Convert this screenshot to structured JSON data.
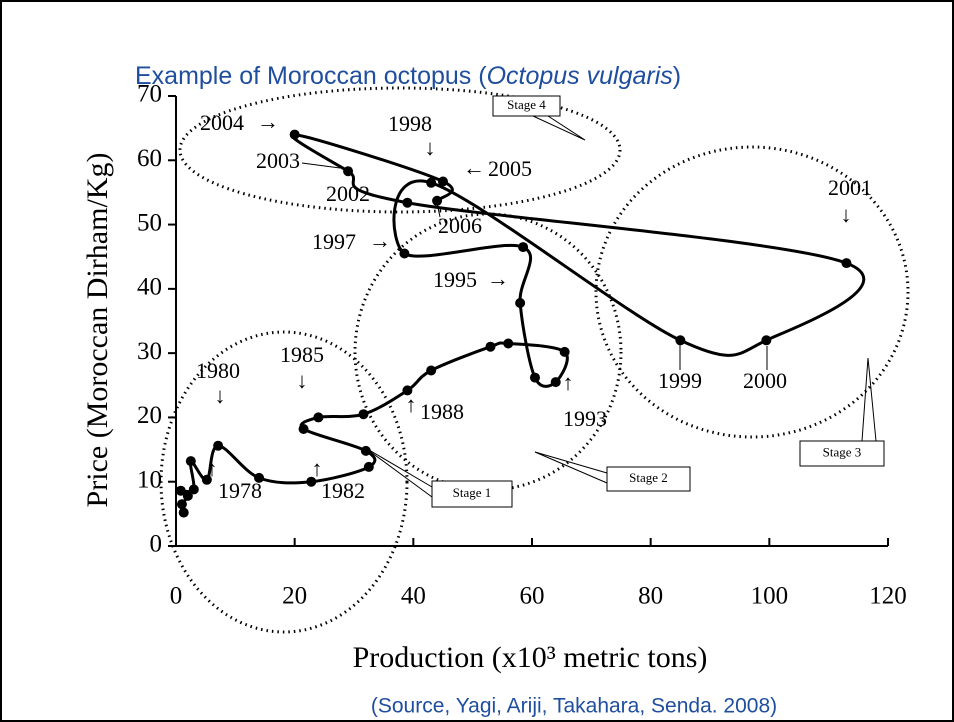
{
  "chart_data": {
    "type": "connected-scatter",
    "title": [
      "Example of Moroccan octopus (",
      "Octopus vulgaris",
      ")"
    ],
    "xlabel": "Production (x10³ metric tons)",
    "ylabel": "Price (Moroccan Dirham/Kg)",
    "source": "(Source, Yagi, Ariji, Takahara, Senda. 2008)",
    "xlim": [
      0,
      120
    ],
    "xticks": [
      0,
      20,
      40,
      60,
      80,
      100,
      120
    ],
    "ylim": [
      0,
      70
    ],
    "yticks": [
      0,
      10,
      20,
      30,
      40,
      50,
      60,
      70
    ],
    "series": [
      {
        "color": "#000000",
        "x": [
          1.3,
          1,
          2,
          0.8,
          3,
          2.5,
          5.2,
          7.1,
          14,
          22.8,
          32.5,
          32,
          21.5,
          24,
          31.6,
          39,
          43,
          53,
          56,
          65.5,
          64,
          60.5,
          58,
          58.5,
          38.5,
          43,
          85,
          99.5,
          113,
          39,
          29,
          20,
          45,
          44
        ],
        "values": [
          5.2,
          6.5,
          7.8,
          8.6,
          8.8,
          13.2,
          10.3,
          15.6,
          10.6,
          10,
          12.3,
          14.8,
          18.2,
          20,
          20.5,
          24.2,
          27.3,
          31,
          31.5,
          30.2,
          25.5,
          26.2,
          37.8,
          46.5,
          45.5,
          56.5,
          32,
          32,
          44,
          53.4,
          58.3,
          64,
          56.7,
          53.7
        ]
      }
    ],
    "annotations": [
      {
        "text": "2004",
        "arrow": "→"
      },
      {
        "text": "2003"
      },
      {
        "text": "1998",
        "arrow": "↓"
      },
      {
        "text": "2005",
        "arrow": "←"
      },
      {
        "text": "2002"
      },
      {
        "text": "2006"
      },
      {
        "text": "1997",
        "arrow": "→"
      },
      {
        "text": "1995",
        "arrow": "→"
      },
      {
        "text": "2001",
        "arrow": "↓"
      },
      {
        "text": "1999"
      },
      {
        "text": "2000"
      },
      {
        "text": "1985",
        "arrow": "↓"
      },
      {
        "text": "1980",
        "arrow": "↓"
      },
      {
        "text": "1978",
        "arrow": "↑"
      },
      {
        "text": "1982",
        "arrow": "↑"
      },
      {
        "text": "1988",
        "arrow": "↑"
      },
      {
        "text": "1993",
        "arrow": "↑"
      }
    ],
    "stages": [
      "Stage 1",
      "Stage 2",
      "Stage 3",
      "Stage 4"
    ]
  }
}
